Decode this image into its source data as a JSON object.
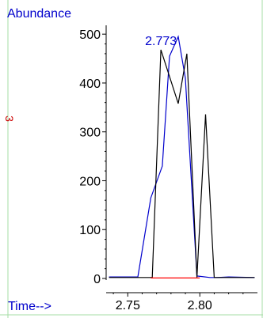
{
  "chart_data": {
    "type": "line",
    "ylabel": "Abundance",
    "xlabel": "Time-->",
    "xlim": [
      2.735,
      2.84
    ],
    "ylim": [
      0,
      510
    ],
    "x_ticks": [
      2.75,
      2.8
    ],
    "x_tick_labels": [
      "2.75",
      "2.80"
    ],
    "y_ticks": [
      0,
      100,
      200,
      300,
      400,
      500
    ],
    "y_tick_labels": [
      "0",
      "100",
      "200",
      "300",
      "400",
      "500"
    ],
    "peak_label": "2.773",
    "peak_label_x": 2.773,
    "side_mark": "3",
    "series": [
      {
        "color": "#0000cc",
        "x": [
          2.737,
          2.757,
          2.766,
          2.774,
          2.779,
          2.785,
          2.79,
          2.798,
          2.807,
          2.812,
          2.82,
          2.838
        ],
        "y": [
          3,
          3,
          165,
          230,
          455,
          495,
          410,
          5,
          2,
          2,
          3,
          2
        ]
      },
      {
        "color": "#000000",
        "x": [
          2.737,
          2.767,
          2.773,
          2.785,
          2.791,
          2.798,
          2.804,
          2.81,
          2.82,
          2.838
        ],
        "y": [
          2,
          2,
          468,
          358,
          460,
          2,
          336,
          2,
          2,
          2
        ]
      },
      {
        "color": "#ff0000",
        "x": [
          2.766,
          2.8
        ],
        "y": [
          1,
          1
        ]
      }
    ]
  }
}
